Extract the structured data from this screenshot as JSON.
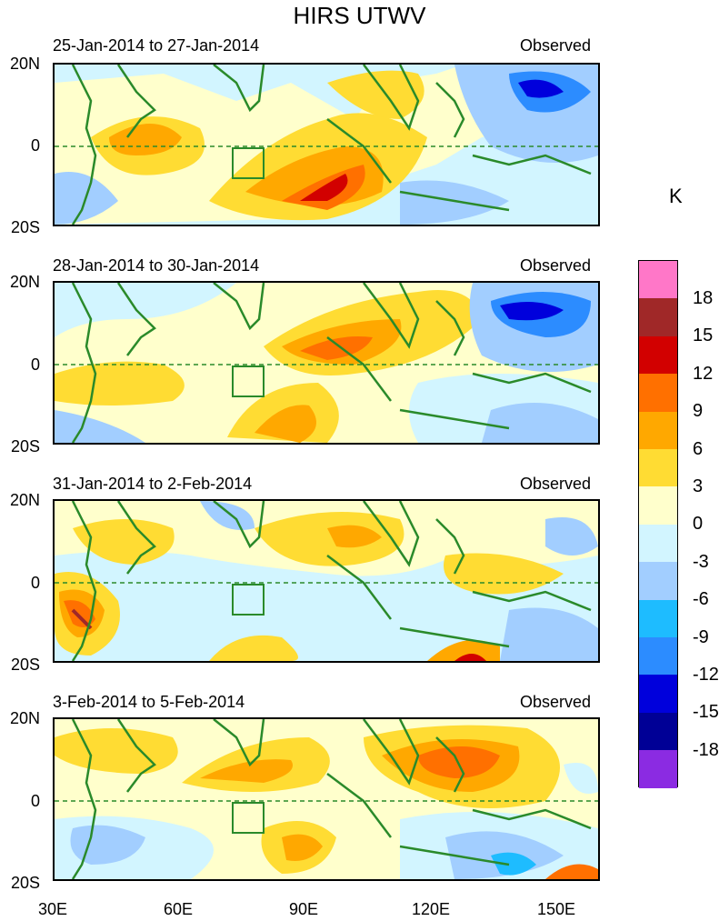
{
  "figure_title": "HIRS UTWV",
  "panels": [
    {
      "date_range": "25-Jan-2014 to 27-Jan-2014",
      "label": "Observed"
    },
    {
      "date_range": "28-Jan-2014 to 30-Jan-2014",
      "label": "Observed"
    },
    {
      "date_range": "31-Jan-2014 to 2-Feb-2014",
      "label": "Observed"
    },
    {
      "date_range": "3-Feb-2014 to 5-Feb-2014",
      "label": "Observed"
    }
  ],
  "lat_labels": {
    "north": "20N",
    "equator": "0",
    "south": "20S"
  },
  "lon_labels": [
    "30E",
    "60E",
    "90E",
    "120E",
    "150E"
  ],
  "colorbar": {
    "unit": "K",
    "labels": [
      "18",
      "15",
      "12",
      "9",
      "6",
      "3",
      "0",
      "-3",
      "-6",
      "-9",
      "-12",
      "-15",
      "-18"
    ],
    "colors": [
      "#ff77c8",
      "#a02828",
      "#d20000",
      "#ff7000",
      "#ffa800",
      "#ffdc33",
      "#ffffcc",
      "#d2f5ff",
      "#a2ceff",
      "#1ebcff",
      "#2c8cff",
      "#0000dc",
      "#000096",
      "#8b2be2"
    ]
  },
  "map_colors": {
    "coast": "#2a8a2a",
    "equator_line": "#2a8a2a"
  }
}
